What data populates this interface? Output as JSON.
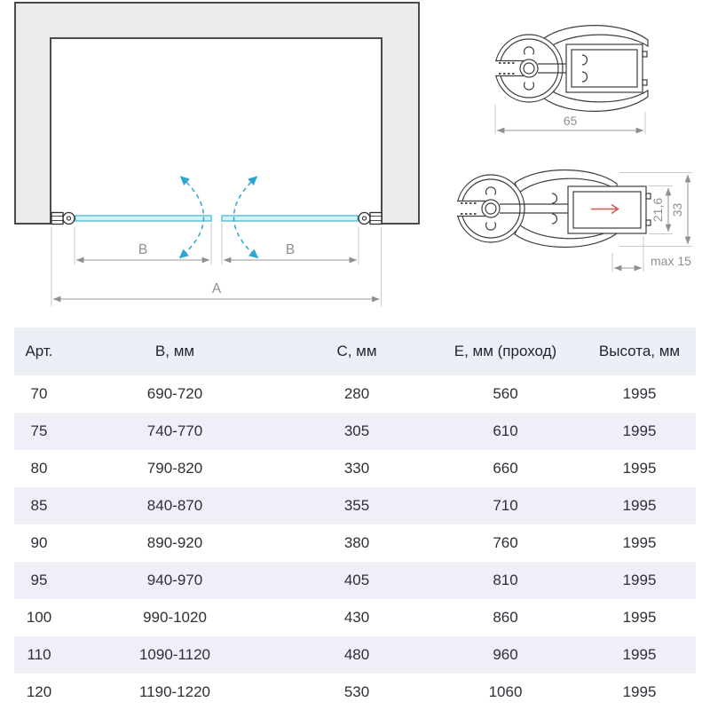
{
  "diagram": {
    "dim_b_left": "B",
    "dim_b_right": "B",
    "dim_a": "A",
    "profile_top": {
      "dim_width": "65"
    },
    "profile_side": {
      "dim_glass_channel": "21,6",
      "dim_overall": "33",
      "dim_adjust": "max 15"
    },
    "colors": {
      "wall_fill": "#ebebeb",
      "wall_stroke": "#4b4b4b",
      "glass_fill": "#d6f1f6",
      "glass_stroke": "#53c0d3",
      "swing_arc": "#2da5d4",
      "dim_line": "#9a9a9a",
      "dim_text": "#8f8f8f",
      "profile_stroke": "#3d3d3d",
      "red_arrow": "#d9534f",
      "table_stripe": "#eff0f7",
      "table_header_bg": "#edeff6"
    }
  },
  "table": {
    "columns": [
      "Арт.",
      "B, мм",
      "C, мм",
      "E, мм (проход)",
      "Высота, мм"
    ],
    "rows": [
      [
        "70",
        "690-720",
        "280",
        "560",
        "1995"
      ],
      [
        "75",
        "740-770",
        "305",
        "610",
        "1995"
      ],
      [
        "80",
        "790-820",
        "330",
        "660",
        "1995"
      ],
      [
        "85",
        "840-870",
        "355",
        "710",
        "1995"
      ],
      [
        "90",
        "890-920",
        "380",
        "760",
        "1995"
      ],
      [
        "95",
        "940-970",
        "405",
        "810",
        "1995"
      ],
      [
        "100",
        "990-1020",
        "430",
        "860",
        "1995"
      ],
      [
        "110",
        "1090-1120",
        "480",
        "960",
        "1995"
      ],
      [
        "120",
        "1190-1220",
        "530",
        "1060",
        "1995"
      ]
    ]
  }
}
